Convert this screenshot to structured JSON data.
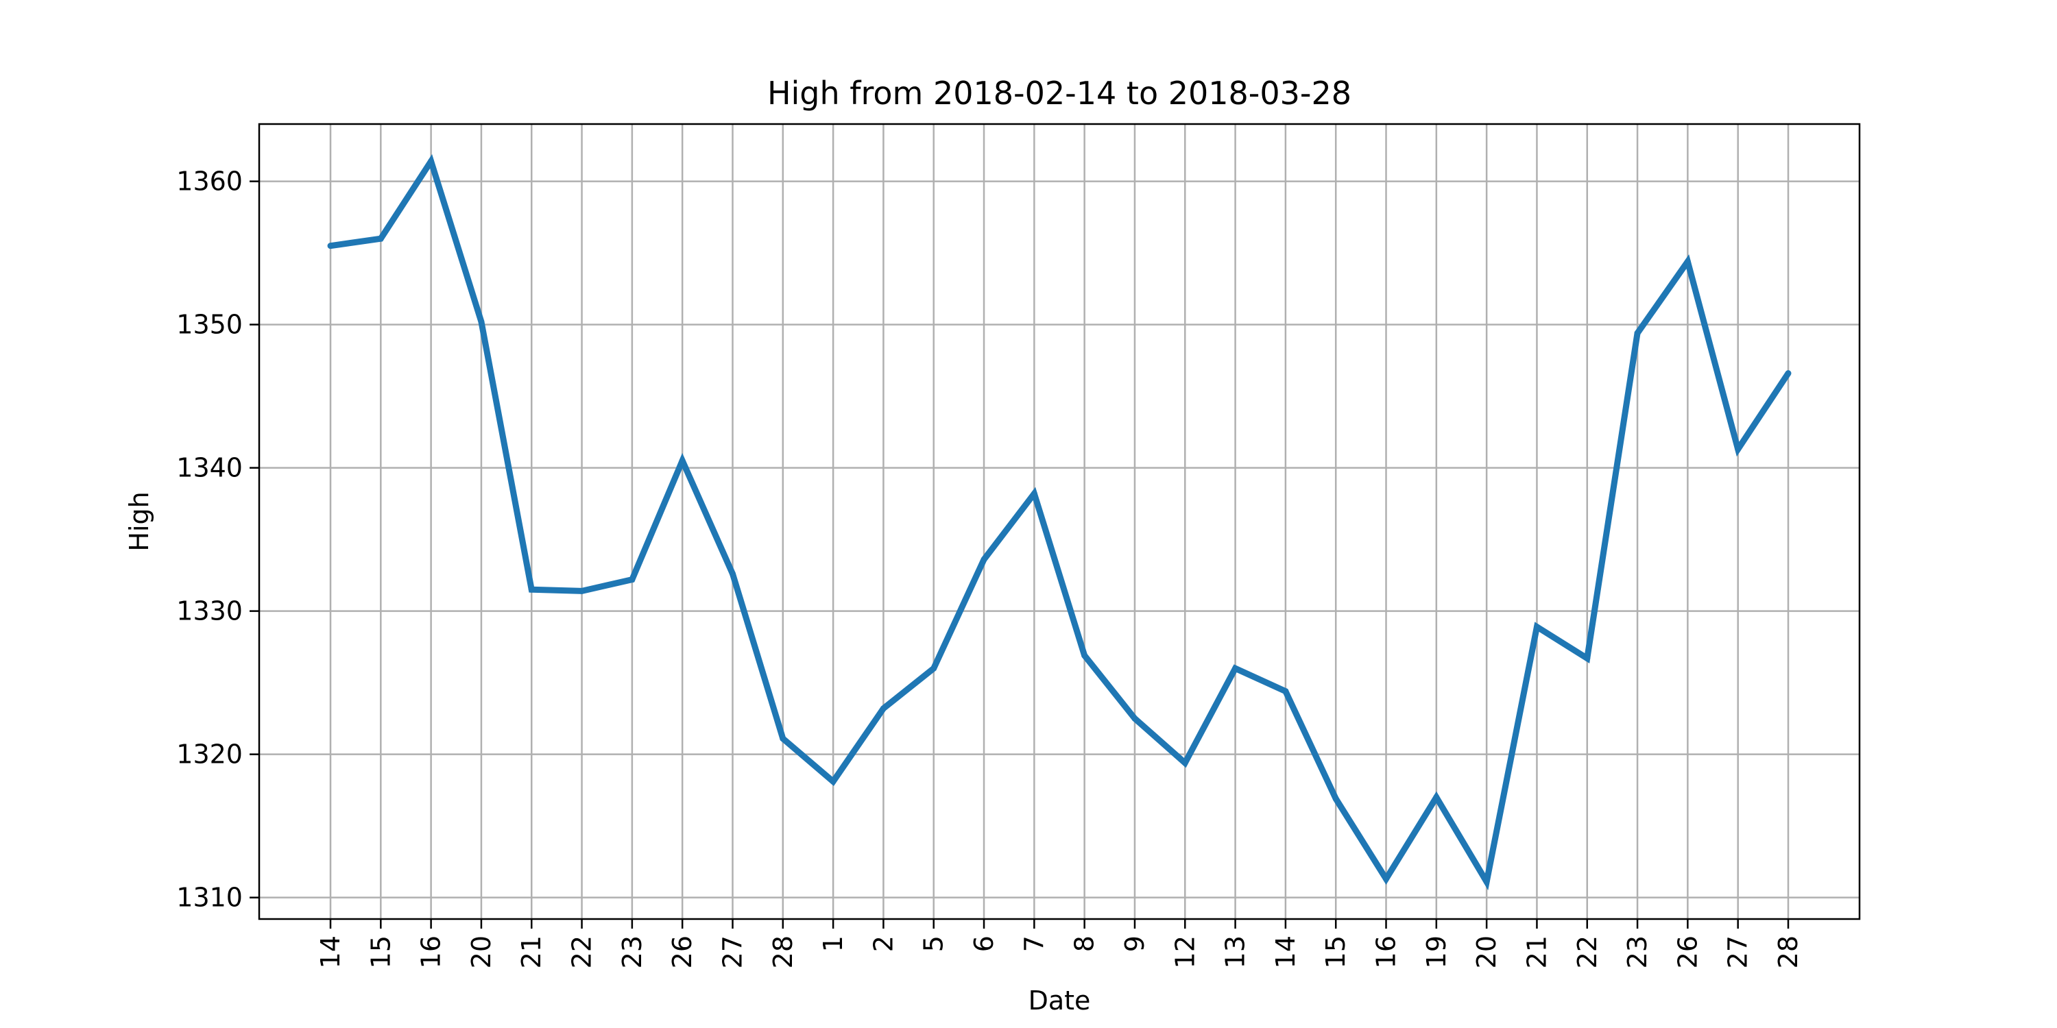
{
  "chart_data": {
    "type": "line",
    "title": "High from 2018-02-14 to 2018-03-28",
    "xlabel": "Date",
    "ylabel": "High",
    "grid": true,
    "ylim": [
      1308.5,
      1364
    ],
    "yticks": [
      1310,
      1320,
      1330,
      1340,
      1350,
      1360
    ],
    "categories": [
      "14",
      "15",
      "16",
      "20",
      "21",
      "22",
      "23",
      "26",
      "27",
      "28",
      "1",
      "2",
      "5",
      "6",
      "7",
      "8",
      "9",
      "12",
      "13",
      "14",
      "15",
      "16",
      "19",
      "20",
      "21",
      "22",
      "23",
      "26",
      "27",
      "28"
    ],
    "x": [
      "2018-02-14",
      "2018-02-15",
      "2018-02-16",
      "2018-02-20",
      "2018-02-21",
      "2018-02-22",
      "2018-02-23",
      "2018-02-26",
      "2018-02-27",
      "2018-02-28",
      "2018-03-01",
      "2018-03-02",
      "2018-03-05",
      "2018-03-06",
      "2018-03-07",
      "2018-03-08",
      "2018-03-09",
      "2018-03-12",
      "2018-03-13",
      "2018-03-14",
      "2018-03-15",
      "2018-03-16",
      "2018-03-19",
      "2018-03-20",
      "2018-03-21",
      "2018-03-22",
      "2018-03-23",
      "2018-03-26",
      "2018-03-27",
      "2018-03-28"
    ],
    "series": [
      {
        "color": "#1f77b4",
        "values": [
          1355.5,
          1356.0,
          1361.4,
          1350.2,
          1331.5,
          1331.4,
          1332.2,
          1340.5,
          1332.6,
          1321.1,
          1318.1,
          1323.2,
          1326.0,
          1333.6,
          1338.2,
          1326.9,
          1322.5,
          1319.4,
          1326.0,
          1324.4,
          1316.9,
          1311.3,
          1317.0,
          1311.1,
          1328.9,
          1326.7,
          1349.4,
          1354.4,
          1341.3,
          1346.6
        ]
      }
    ]
  }
}
